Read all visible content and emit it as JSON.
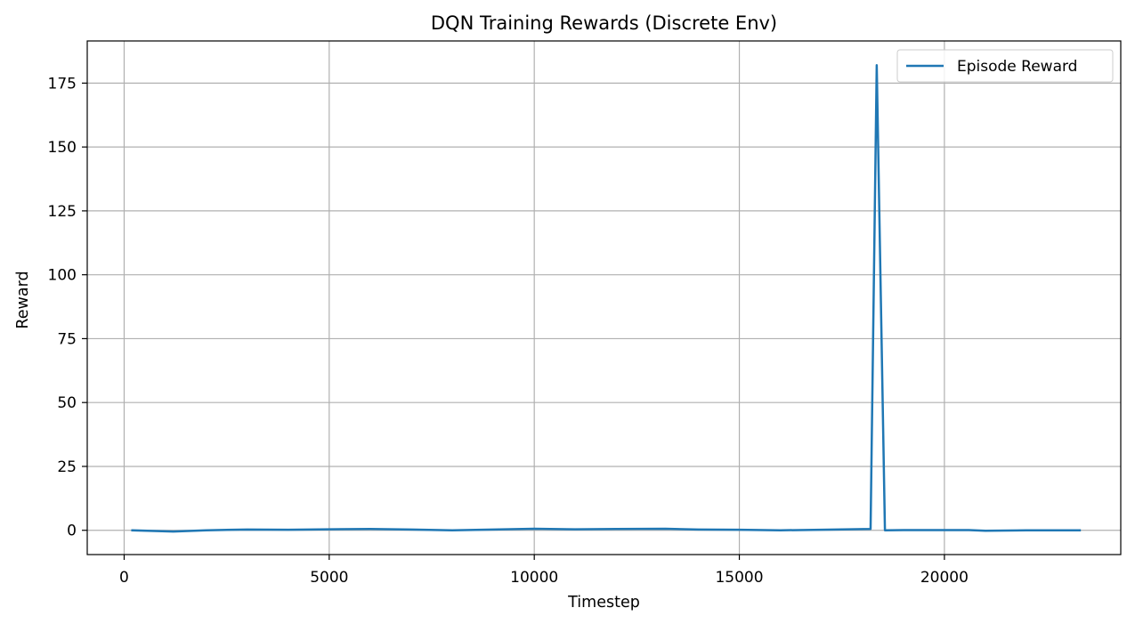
{
  "chart_data": {
    "type": "line",
    "title": "DQN Training Rewards (Discrete Env)",
    "xlabel": "Timestep",
    "ylabel": "Reward",
    "xlim": [
      -900,
      24300
    ],
    "ylim": [
      -9.5,
      191.5
    ],
    "xticks": [
      0,
      5000,
      10000,
      15000,
      20000
    ],
    "yticks": [
      0,
      25,
      50,
      75,
      100,
      125,
      150,
      175
    ],
    "grid": true,
    "legend_position": "top-right",
    "series": [
      {
        "name": "Episode Reward",
        "color": "#1f77b4",
        "x": [
          200,
          1200,
          2000,
          3000,
          4000,
          5000,
          6000,
          7000,
          8000,
          9000,
          10000,
          11000,
          12000,
          13200,
          14000,
          15000,
          16000,
          17000,
          18200,
          18350,
          18550,
          19000,
          20000,
          20600,
          21000,
          22000,
          23300
        ],
        "y": [
          0,
          -0.5,
          0,
          0.3,
          0.2,
          0.4,
          0.5,
          0.3,
          0,
          0.3,
          0.6,
          0.4,
          0.5,
          0.6,
          0.3,
          0.2,
          0,
          0.2,
          0.5,
          182,
          0,
          0.1,
          0.1,
          0.1,
          -0.2,
          0,
          0
        ]
      }
    ]
  }
}
